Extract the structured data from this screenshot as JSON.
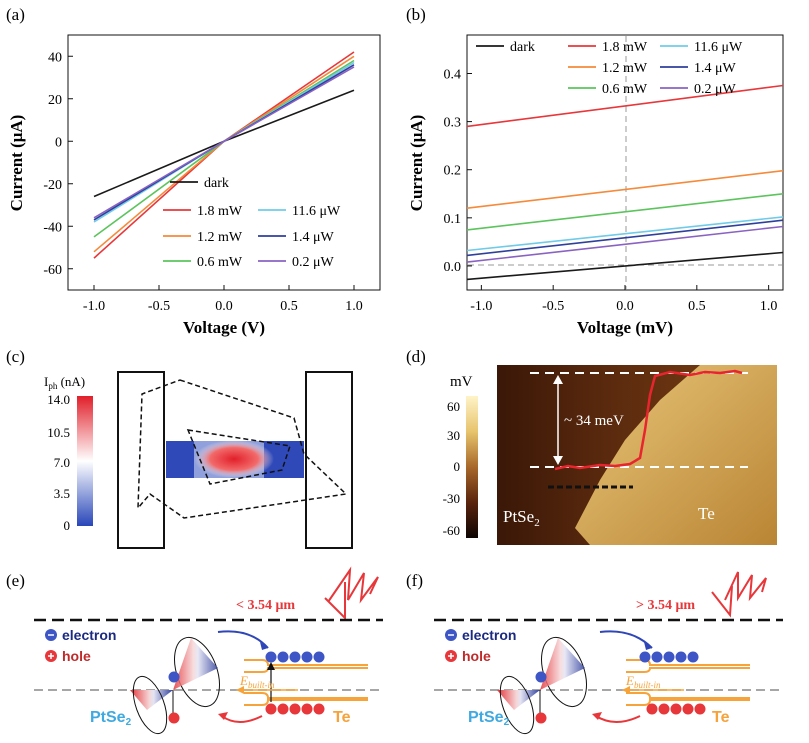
{
  "panels": {
    "a": {
      "label": "(a)"
    },
    "b": {
      "label": "(b)"
    },
    "c": {
      "label": "(c)",
      "cbar_title_main": "I",
      "cbar_title_sub": "ph",
      "cbar_title_unit": " (nA)",
      "cbar_ticks": [
        "14.0",
        "10.5",
        "7.0",
        "3.5",
        "0"
      ]
    },
    "d": {
      "label": "(d)",
      "cbar_title": "mV",
      "cbar_ticks": [
        "60",
        "30",
        "0",
        "-30",
        "-60"
      ],
      "step_label": "~ 34 meV",
      "material_left_main": "PtSe",
      "material_left_sub": "2",
      "material_right": "Te"
    },
    "e": {
      "label": "(e)",
      "wavelength": "< 3.54 μm",
      "legend_electron": "electron",
      "legend_hole": "hole",
      "field_main": "E",
      "field_sub": "built-in",
      "material_left_main": "PtSe",
      "material_left_sub": "2",
      "material_right": "Te"
    },
    "f": {
      "label": "(f)",
      "wavelength": "> 3.54 μm",
      "legend_electron": "electron",
      "legend_hole": "hole",
      "field_main": "E",
      "field_sub": "built-in",
      "material_left_main": "PtSe",
      "material_left_sub": "2",
      "material_right": "Te"
    }
  },
  "colors": {
    "dark": "#1a1a1a",
    "p18mW": "#e8373a",
    "p12mW": "#f58a3a",
    "p06mW": "#5cc45c",
    "p116uW": "#6fcbe8",
    "p14uW": "#2f3f9c",
    "p02uW": "#8a62c2",
    "accent_red": "#e8373a",
    "band_orange": "#f5a33a",
    "pt_blue": "#3fa9e0"
  },
  "chart_data": [
    {
      "id": "a",
      "type": "line",
      "xlabel": "Voltage (V)",
      "ylabel": "Current (μA)",
      "xlim": [
        -1.2,
        1.2
      ],
      "ylim": [
        -70,
        50
      ],
      "xticks": [
        -1.0,
        -0.5,
        0.0,
        0.5,
        1.0
      ],
      "xtick_labels": [
        "-1.0",
        "-0.5",
        "0.0",
        "0.5",
        "1.0"
      ],
      "yticks": [
        -60,
        -40,
        -20,
        0,
        20,
        40
      ],
      "ytick_labels": [
        "-60",
        "-40",
        "-20",
        "0",
        "20",
        "40"
      ],
      "series": [
        {
          "name": "dark",
          "color_key": "dark",
          "x": [
            -1,
            0,
            1
          ],
          "y": [
            -26,
            0,
            24
          ]
        },
        {
          "name": "1.8 mW",
          "color_key": "p18mW",
          "x": [
            -1,
            0,
            1
          ],
          "y": [
            -55,
            0,
            42
          ]
        },
        {
          "name": "1.2 mW",
          "color_key": "p12mW",
          "x": [
            -1,
            0,
            1
          ],
          "y": [
            -52,
            0,
            40
          ]
        },
        {
          "name": "0.6 mW",
          "color_key": "p06mW",
          "x": [
            -1,
            0,
            1
          ],
          "y": [
            -45,
            0,
            38
          ]
        },
        {
          "name": "11.6 μW",
          "color_key": "p116uW",
          "x": [
            -1,
            0,
            1
          ],
          "y": [
            -38,
            0,
            37
          ]
        },
        {
          "name": "1.4 μW",
          "color_key": "p14uW",
          "x": [
            -1,
            0,
            1
          ],
          "y": [
            -37,
            0,
            36
          ]
        },
        {
          "name": "0.2 μW",
          "color_key": "p02uW",
          "x": [
            -1,
            0,
            1
          ],
          "y": [
            -36,
            0,
            35
          ]
        }
      ],
      "legend_placement": "lower-right"
    },
    {
      "id": "b",
      "type": "line",
      "xlabel": "Voltage (mV)",
      "ylabel": "Current (μA)",
      "xlim": [
        -1.1,
        1.1
      ],
      "ylim": [
        -0.05,
        0.48
      ],
      "xticks": [
        -1.0,
        -0.5,
        0.0,
        0.5,
        1.0
      ],
      "xtick_labels": [
        "-1.0",
        "-0.5",
        "0.0",
        "0.5",
        "1.0"
      ],
      "yticks": [
        0.0,
        0.1,
        0.2,
        0.3,
        0.4
      ],
      "ytick_labels": [
        "0.0",
        "0.1",
        "0.2",
        "0.3",
        "0.4"
      ],
      "series": [
        {
          "name": "dark",
          "color_key": "dark",
          "x": [
            -1.1,
            1.1
          ],
          "y": [
            -0.028,
            0.028
          ]
        },
        {
          "name": "1.8 mW",
          "color_key": "p18mW",
          "x": [
            -1.1,
            1.1
          ],
          "y": [
            0.29,
            0.375
          ]
        },
        {
          "name": "1.2 mW",
          "color_key": "p12mW",
          "x": [
            -1.1,
            1.1
          ],
          "y": [
            0.12,
            0.198
          ]
        },
        {
          "name": "0.6 mW",
          "color_key": "p06mW",
          "x": [
            -1.1,
            1.1
          ],
          "y": [
            0.075,
            0.15
          ]
        },
        {
          "name": "11.6 μW",
          "color_key": "p116uW",
          "x": [
            -1.1,
            1.1
          ],
          "y": [
            0.032,
            0.102
          ]
        },
        {
          "name": "1.4 μW",
          "color_key": "p14uW",
          "x": [
            -1.1,
            1.1
          ],
          "y": [
            0.022,
            0.095
          ]
        },
        {
          "name": "0.2 μW",
          "color_key": "p02uW",
          "x": [
            -1.1,
            1.1
          ],
          "y": [
            0.008,
            0.082
          ]
        }
      ],
      "legend_placement": "top"
    }
  ]
}
